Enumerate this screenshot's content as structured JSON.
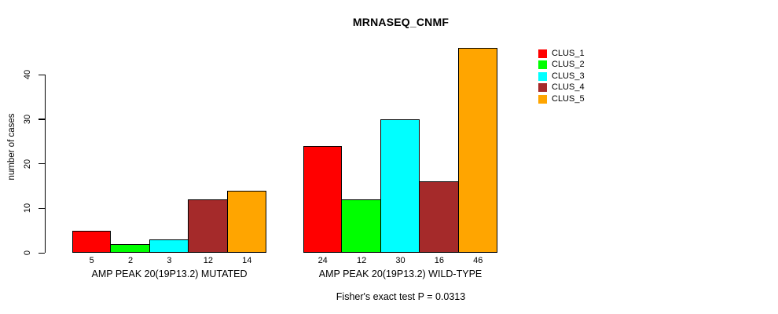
{
  "chart_data": {
    "type": "bar",
    "title": "MRNASEQ_CNMF",
    "ylabel": "number of cases",
    "xlabel": "",
    "yticks": [
      0,
      10,
      20,
      30,
      40
    ],
    "ylim": [
      0,
      46
    ],
    "grid": false,
    "legend_position": "right",
    "bar_value_labels": true,
    "categories": [
      "AMP PEAK 20(19P13.2) MUTATED",
      "AMP PEAK 20(19P13.2) WILD-TYPE"
    ],
    "series": [
      {
        "name": "CLUS_1",
        "color": "#ff0000",
        "values": [
          5,
          24
        ]
      },
      {
        "name": "CLUS_2",
        "color": "#00ff00",
        "values": [
          2,
          12
        ]
      },
      {
        "name": "CLUS_3",
        "color": "#00ffff",
        "values": [
          3,
          30
        ]
      },
      {
        "name": "CLUS_4",
        "color": "#a52a2a",
        "values": [
          12,
          16
        ]
      },
      {
        "name": "CLUS_5",
        "color": "#ffa500",
        "values": [
          14,
          46
        ]
      }
    ],
    "annotation": "Fisher's exact test P = 0.0313"
  }
}
